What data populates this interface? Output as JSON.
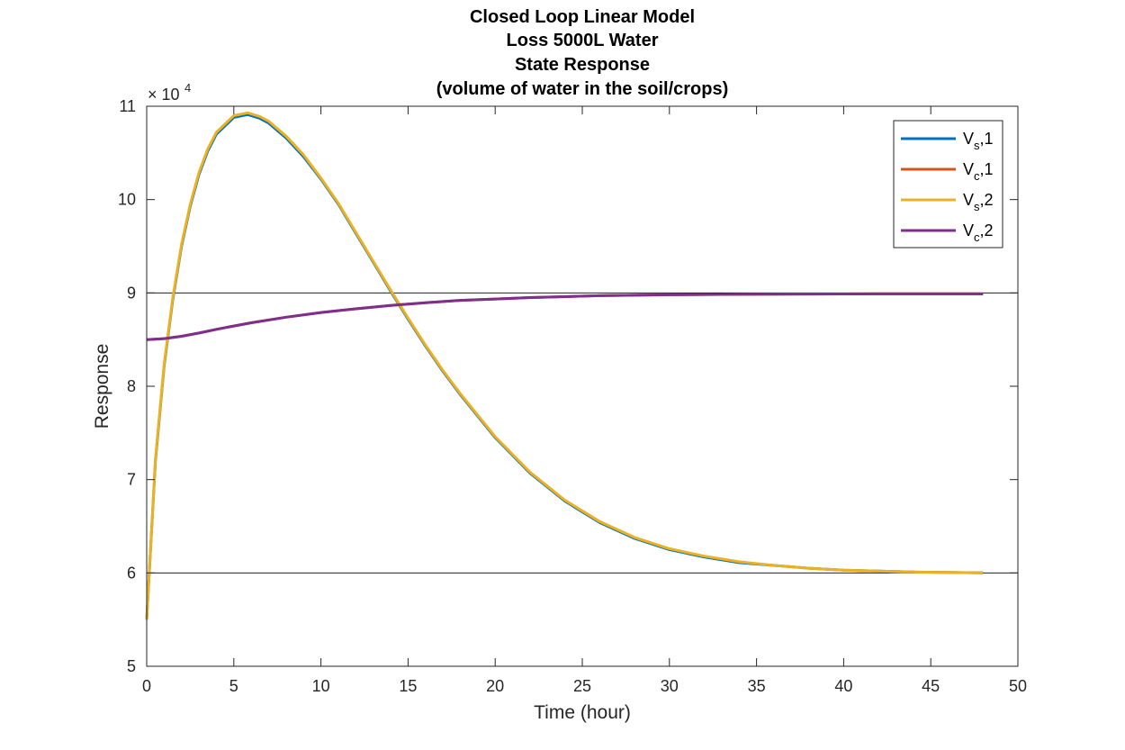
{
  "chart_data": {
    "type": "line",
    "title": [
      "Closed Loop Linear Model",
      "Loss 5000L Water",
      "State Response",
      "(volume of water in the soil/crops)"
    ],
    "xlabel": "Time (hour)",
    "ylabel": "Response",
    "xlim": [
      0,
      50
    ],
    "ylim": [
      50000,
      110000
    ],
    "xticks": [
      0,
      5,
      10,
      15,
      20,
      25,
      30,
      35,
      40,
      45,
      50
    ],
    "yticks": [
      5,
      6,
      7,
      8,
      9,
      10,
      11
    ],
    "y_exponent_label": "× 10",
    "y_exponent_power": "4",
    "grid": false,
    "legend_placement": "top-right",
    "reference_lines": [
      60000,
      90000
    ],
    "series": [
      {
        "name": "Vs,1",
        "label_main": "V",
        "label_sub": "s",
        "label_suffix": ",1",
        "color": "#0072BD",
        "x": [
          0,
          0.5,
          1,
          1.5,
          2,
          2.5,
          3,
          3.5,
          4,
          5,
          5.8,
          6.5,
          7,
          8,
          9,
          10,
          11,
          12,
          13,
          14,
          15,
          16,
          17,
          18,
          20,
          22,
          24,
          26,
          28,
          30,
          32,
          34,
          36,
          38,
          40,
          42,
          44,
          46,
          48
        ],
        "y": [
          55000,
          72000,
          82200,
          89300,
          95000,
          99300,
          102700,
          105200,
          107000,
          108800,
          109100,
          108700,
          108200,
          106600,
          104600,
          102200,
          99500,
          96400,
          93300,
          90200,
          87200,
          84300,
          81600,
          79100,
          74500,
          70700,
          67700,
          65400,
          63700,
          62500,
          61700,
          61100,
          60800,
          60500,
          60300,
          60200,
          60100,
          60050,
          60000
        ]
      },
      {
        "name": "Vc,1",
        "label_main": "V",
        "label_sub": "c",
        "label_suffix": ",1",
        "color": "#D95319",
        "x": [
          0,
          1,
          2,
          3,
          4,
          5,
          6,
          8,
          10,
          12,
          14,
          16,
          18,
          20,
          22,
          24,
          26,
          28,
          30,
          34,
          38,
          42,
          48
        ],
        "y": [
          85000,
          85100,
          85350,
          85700,
          86100,
          86450,
          86800,
          87400,
          87900,
          88300,
          88650,
          88950,
          89200,
          89350,
          89500,
          89600,
          89700,
          89750,
          89800,
          89850,
          89880,
          89900,
          89900
        ]
      },
      {
        "name": "Vs,2",
        "label_main": "V",
        "label_sub": "s",
        "label_suffix": ",2",
        "color": "#EDB120",
        "x": [
          0,
          0.5,
          1,
          1.5,
          2,
          2.5,
          3,
          3.5,
          4,
          5,
          5.8,
          6.5,
          7,
          8,
          9,
          10,
          11,
          12,
          13,
          14,
          15,
          16,
          17,
          18,
          20,
          22,
          24,
          26,
          28,
          30,
          32,
          34,
          36,
          38,
          40,
          42,
          44,
          46,
          48
        ],
        "y": [
          55000,
          72200,
          82400,
          89500,
          95200,
          99500,
          102900,
          105400,
          107200,
          109000,
          109300,
          108900,
          108400,
          106800,
          104800,
          102300,
          99600,
          96500,
          93400,
          90300,
          87300,
          84400,
          81700,
          79200,
          74600,
          70800,
          67800,
          65500,
          63800,
          62600,
          61800,
          61200,
          60800,
          60500,
          60300,
          60200,
          60100,
          60050,
          60000
        ]
      },
      {
        "name": "Vc,2",
        "label_main": "V",
        "label_sub": "c",
        "label_suffix": ",2",
        "color": "#7E2F8E",
        "x": [
          0,
          1,
          2,
          3,
          4,
          5,
          6,
          8,
          10,
          12,
          14,
          16,
          18,
          20,
          22,
          24,
          26,
          28,
          30,
          34,
          38,
          42,
          48
        ],
        "y": [
          85000,
          85100,
          85350,
          85700,
          86100,
          86450,
          86800,
          87400,
          87900,
          88300,
          88650,
          88950,
          89200,
          89350,
          89500,
          89600,
          89700,
          89750,
          89800,
          89850,
          89880,
          89900,
          89900
        ]
      }
    ]
  }
}
